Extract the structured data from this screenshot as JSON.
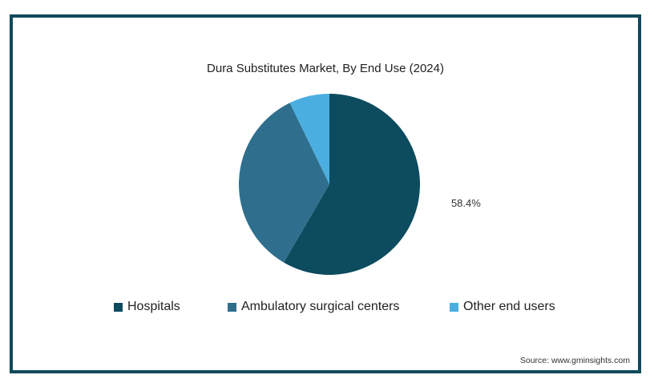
{
  "chart_data": {
    "type": "pie",
    "title": "Dura Substitutes Market, By End Use (2024)",
    "slices": [
      {
        "label": "Hospitals",
        "value": 58.4,
        "color": "#0d4b5e",
        "data_label": "58.4%"
      },
      {
        "label": "Ambulatory surgical centers",
        "value": 34.4,
        "color": "#2f6e8c",
        "data_label": ""
      },
      {
        "label": "Other end users",
        "value": 7.2,
        "color": "#4aaee0",
        "data_label": ""
      }
    ],
    "legend_position": "bottom"
  },
  "source": "Source: www.gminsights.com"
}
